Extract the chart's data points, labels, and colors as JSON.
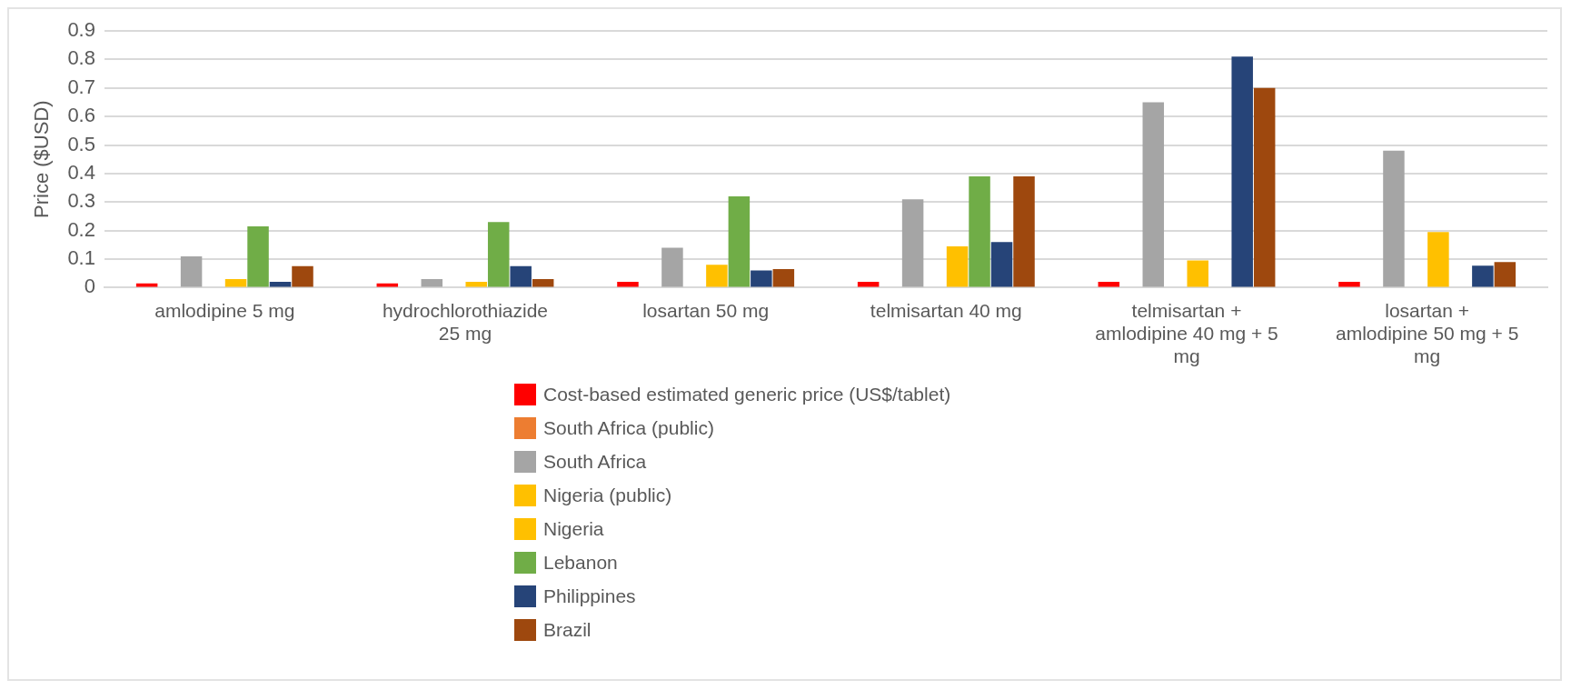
{
  "chart_data": {
    "type": "bar",
    "ylabel": "Price ($USD)",
    "categories": [
      "amlodipine 5 mg",
      "hydrochlorothiazide 25 mg",
      "losartan 50 mg",
      "telmisartan 40 mg",
      "telmisartan + amlodipine 40 mg + 5 mg",
      "losartan + amlodipine 50 mg + 5 mg"
    ],
    "series": [
      {
        "name": "Cost-based estimated generic price (US$/tablet)",
        "color": "#ff0000",
        "values": [
          0.015,
          0.015,
          0.02,
          0.02,
          0.02,
          0.02
        ]
      },
      {
        "name": "South Africa (public)",
        "color": "#ed7d31",
        "values": [
          null,
          null,
          null,
          null,
          null,
          null
        ]
      },
      {
        "name": "South Africa",
        "color": "#a5a5a5",
        "values": [
          0.11,
          0.03,
          0.14,
          0.31,
          0.65,
          0.48
        ]
      },
      {
        "name": "Nigeria (public)",
        "color": "#ffc000",
        "values": [
          null,
          null,
          null,
          null,
          null,
          null
        ]
      },
      {
        "name": "Nigeria",
        "color": "#ffc000",
        "values": [
          0.03,
          0.02,
          0.08,
          0.145,
          0.095,
          0.195
        ]
      },
      {
        "name": "Lebanon",
        "color": "#70ad47",
        "values": [
          0.215,
          0.23,
          0.32,
          0.39,
          null,
          null
        ]
      },
      {
        "name": "Philippines",
        "color": "#264478",
        "values": [
          0.02,
          0.075,
          0.06,
          0.16,
          0.81,
          0.077
        ]
      },
      {
        "name": "Brazil",
        "color": "#9e480e",
        "values": [
          0.075,
          0.03,
          0.065,
          0.39,
          0.7,
          0.09
        ]
      }
    ],
    "ylim": [
      0,
      0.9
    ],
    "yticks": [
      0,
      0.1,
      0.2,
      0.3,
      0.4,
      0.5,
      0.6,
      0.7,
      0.8,
      0.9
    ],
    "grid": "y",
    "legend": "bottom"
  }
}
